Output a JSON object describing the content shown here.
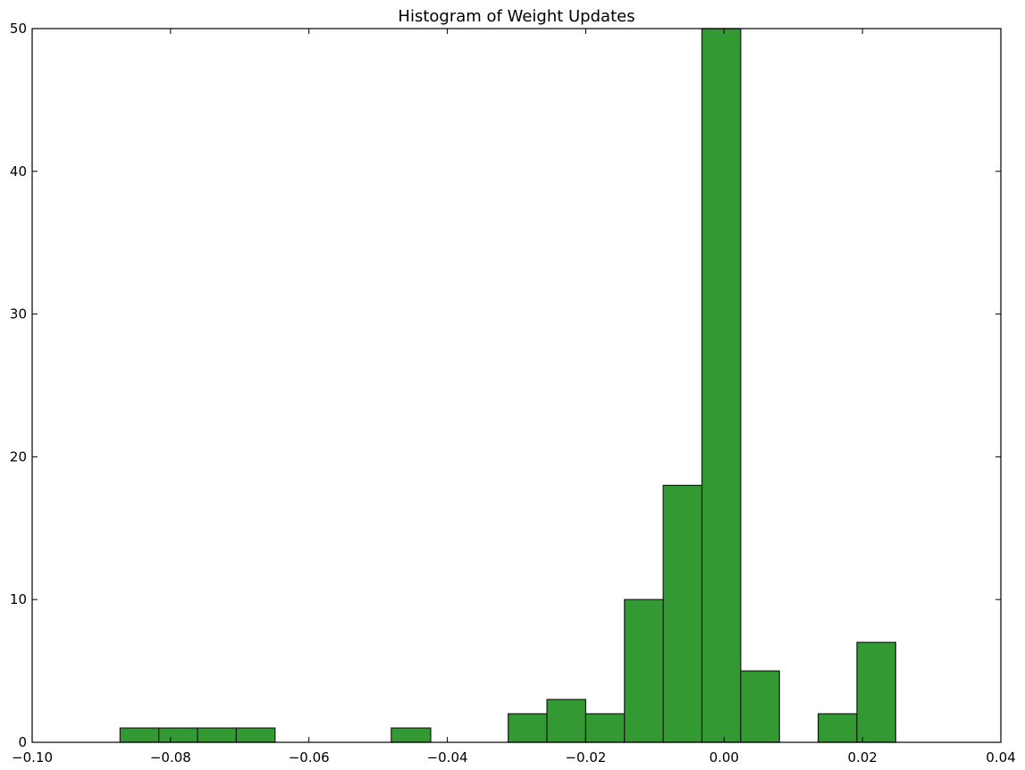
{
  "chart_data": {
    "type": "bar",
    "title": "Histogram of Weight Updates",
    "xlabel": "",
    "ylabel": "",
    "xlim": [
      -0.1,
      0.04
    ],
    "ylim": [
      0,
      50
    ],
    "xticks": [
      -0.1,
      -0.08,
      -0.06,
      -0.04,
      -0.02,
      0.0,
      0.02,
      0.04
    ],
    "xtick_labels": [
      "−0.10",
      "−0.08",
      "−0.06",
      "−0.04",
      "−0.02",
      "0.00",
      "0.02",
      "0.04"
    ],
    "yticks": [
      0,
      10,
      20,
      30,
      40,
      50
    ],
    "ytick_labels": [
      "0",
      "10",
      "20",
      "30",
      "40",
      "50"
    ],
    "bin_start": -0.0873,
    "bin_width": 0.00562,
    "bins": [
      {
        "x0": -0.0873,
        "x1": -0.0817,
        "count": 1
      },
      {
        "x0": -0.0817,
        "x1": -0.0761,
        "count": 1
      },
      {
        "x0": -0.0761,
        "x1": -0.0705,
        "count": 1
      },
      {
        "x0": -0.0705,
        "x1": -0.0649,
        "count": 1
      },
      {
        "x0": -0.0649,
        "x1": -0.0593,
        "count": 0
      },
      {
        "x0": -0.0593,
        "x1": -0.0537,
        "count": 0
      },
      {
        "x0": -0.0537,
        "x1": -0.0481,
        "count": 0
      },
      {
        "x0": -0.0481,
        "x1": -0.0424,
        "count": 1
      },
      {
        "x0": -0.0424,
        "x1": -0.0368,
        "count": 0
      },
      {
        "x0": -0.0368,
        "x1": -0.0312,
        "count": 0
      },
      {
        "x0": -0.0312,
        "x1": -0.0256,
        "count": 2
      },
      {
        "x0": -0.0256,
        "x1": -0.02,
        "count": 3
      },
      {
        "x0": -0.02,
        "x1": -0.0144,
        "count": 2
      },
      {
        "x0": -0.0144,
        "x1": -0.0088,
        "count": 10
      },
      {
        "x0": -0.0088,
        "x1": -0.0032,
        "count": 18
      },
      {
        "x0": -0.0032,
        "x1": 0.0024,
        "count": 50
      },
      {
        "x0": 0.0024,
        "x1": 0.008,
        "count": 5
      },
      {
        "x0": 0.008,
        "x1": 0.0136,
        "count": 0
      },
      {
        "x0": 0.0136,
        "x1": 0.0192,
        "count": 2
      },
      {
        "x0": 0.0192,
        "x1": 0.0248,
        "count": 7
      }
    ],
    "bar_color": "#339933",
    "edge_color": "#1a1a1a",
    "grid": false,
    "legend": "none"
  }
}
